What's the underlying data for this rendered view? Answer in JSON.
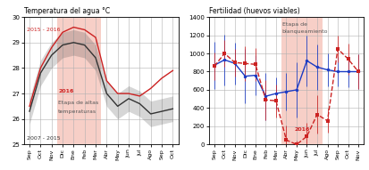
{
  "chart_data": [
    {
      "type": "line",
      "title": "Temperatura del agua °C",
      "categories": [
        "Sep",
        "Oct",
        "Nov",
        "Dic",
        "Ene",
        "Feb",
        "Mar",
        "Abr",
        "May",
        "Jun",
        "Jul",
        "Ago",
        "Sep",
        "Oct"
      ],
      "series": [
        {
          "color": "#333333",
          "line_style": "solid",
          "values": [
            26.3,
            27.8,
            28.5,
            28.9,
            29.0,
            28.9,
            28.4,
            27.0,
            26.5,
            26.8,
            26.6,
            26.2,
            26.3,
            26.4
          ],
          "band": {
            "lower": [
              25.8,
              27.3,
              28.0,
              28.4,
              28.5,
              28.4,
              27.9,
              26.5,
              26.0,
              26.3,
              26.1,
              25.7,
              25.8,
              25.9
            ],
            "upper": [
              26.8,
              28.3,
              29.0,
              29.4,
              29.5,
              29.4,
              28.9,
              27.5,
              27.0,
              27.3,
              27.1,
              26.7,
              26.8,
              26.9
            ]
          }
        },
        {
          "color": "#cc2222",
          "line_style": "solid",
          "values": [
            26.5,
            28.0,
            28.8,
            29.4,
            29.6,
            29.5,
            29.2,
            27.5,
            27.0,
            27.0,
            26.9,
            27.2,
            27.6,
            27.9
          ]
        }
      ],
      "ylim": [
        25,
        30
      ],
      "yticks": [
        25,
        26,
        27,
        28,
        29,
        30
      ],
      "grid": true,
      "highlight": {
        "from": 3,
        "to": 6,
        "color": "#f7cfc7"
      },
      "annotations": [
        {
          "text": "2007 - 2015",
          "color": "#333333"
        },
        {
          "text": "2015 - 2016",
          "color": "#cc2222"
        },
        {
          "text": "2016",
          "color": "#cc2222"
        },
        {
          "text": "Etapa de altas",
          "color": "#555555"
        },
        {
          "text": "temperaturas",
          "color": "#555555"
        }
      ]
    },
    {
      "type": "line",
      "title": "Fertilidad (huevos viables)",
      "categories": [
        "Sep",
        "Oct",
        "Nov",
        "Dic",
        "Ene",
        "Feb",
        "Mar",
        "Abr",
        "May",
        "Jun",
        "Jul",
        "Ago",
        "Sep",
        "Oct",
        "Nov"
      ],
      "series": [
        {
          "color": "#1a3ac4",
          "line_style": "solid",
          "marker": "o",
          "values": [
            870,
            930,
            890,
            750,
            760,
            530,
            560,
            580,
            600,
            920,
            850,
            820,
            800,
            800,
            800
          ],
          "error": {
            "lower": [
              610,
              650,
              660,
              450,
              540,
              270,
              380,
              370,
              300,
              640,
              600,
              640,
              640,
              630,
              610
            ],
            "upper": [
              1130,
              1210,
              1120,
              1050,
              980,
              790,
              740,
              790,
              900,
              1200,
              1100,
              1000,
              960,
              970,
              990
            ]
          }
        },
        {
          "color": "#cc2222",
          "line_style": "dashed",
          "marker": "s",
          "values": [
            860,
            1000,
            900,
            890,
            880,
            490,
            480,
            50,
            0,
            90,
            330,
            260,
            1050,
            940,
            800
          ],
          "error": {
            "lower": [
              710,
              850,
              750,
              700,
              700,
              270,
              300,
              0,
              0,
              0,
              120,
              130,
              900,
              770,
              610
            ],
            "upper": [
              1010,
              1150,
              1050,
              1080,
              1060,
              710,
              660,
              210,
              40,
              240,
              540,
              390,
              1200,
              1110,
              990
            ]
          }
        }
      ],
      "ylim": [
        0,
        1400
      ],
      "yticks": [
        0,
        200,
        400,
        600,
        800,
        1000,
        1200,
        1400
      ],
      "grid": true,
      "highlight": {
        "from": 7,
        "to": 10,
        "color": "#f7cfc7"
      },
      "annotations": [
        {
          "text": "Etapa de",
          "color": "#555555"
        },
        {
          "text": "blanqueamiento",
          "color": "#555555"
        },
        {
          "text": "2016",
          "color": "#cc2222"
        }
      ]
    }
  ]
}
